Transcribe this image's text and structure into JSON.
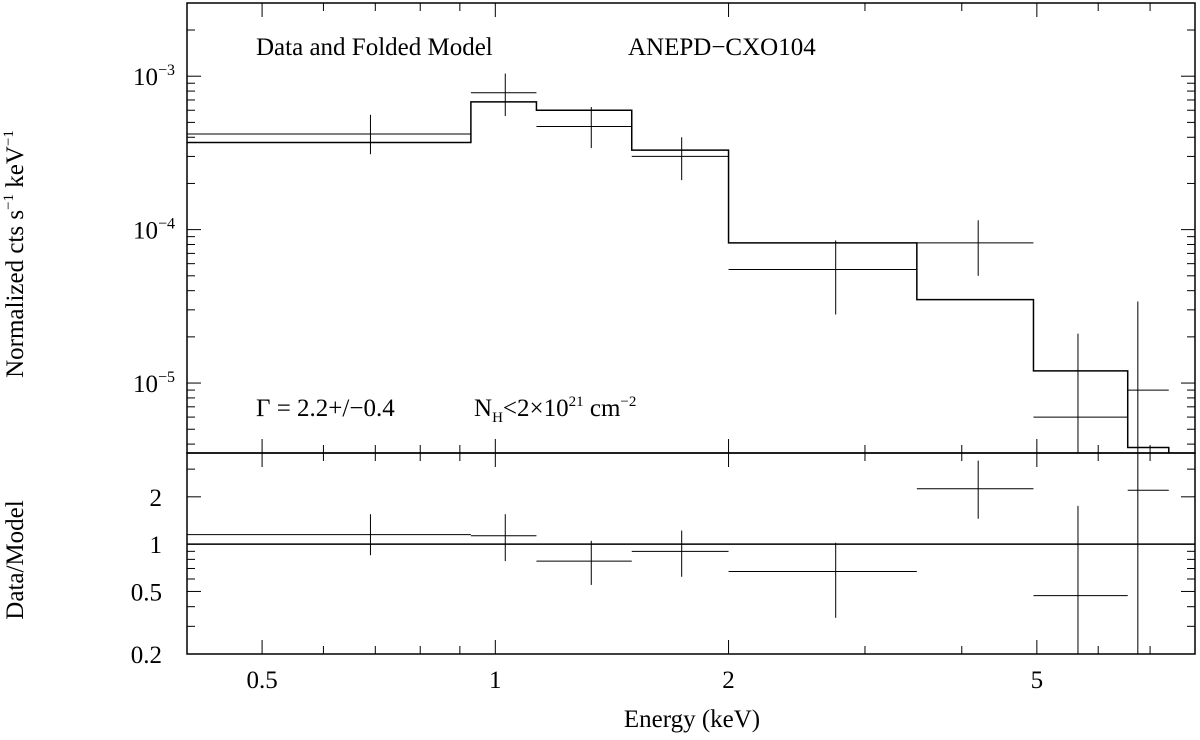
{
  "chart_data": [
    {
      "type": "scatter",
      "panel": "spectrum",
      "title": "Data and Folded Model",
      "source_label": "ANEPD−CXO104",
      "annotation": {
        "gamma_text": "Γ = 2.2+/−0.4",
        "nh_prefix": "N",
        "nh_sub": "H",
        "nh_mid": "<2×10",
        "nh_exp": "21",
        "nh_unit": " cm",
        "nh_unit_exp": "−2"
      },
      "ylabel": {
        "base": "Normalized cts s",
        "exp1": "−1",
        "mid": " keV",
        "exp2": "−1"
      },
      "xscale": "log",
      "yscale": "log",
      "xlim": [
        0.4,
        8.0
      ],
      "ylim": [
        3.5e-06,
        0.003
      ],
      "yticks": [
        {
          "value": 0.001,
          "base": "10",
          "exp": "−3"
        },
        {
          "value": 0.0001,
          "base": "10",
          "exp": "−4"
        },
        {
          "value": 1e-05,
          "base": "10",
          "exp": "−5"
        }
      ],
      "model_steps": [
        {
          "x0": 0.4,
          "x1": 0.93,
          "y": 0.00037
        },
        {
          "x0": 0.93,
          "x1": 1.13,
          "y": 0.00068
        },
        {
          "x0": 1.13,
          "x1": 1.5,
          "y": 0.0006
        },
        {
          "x0": 1.5,
          "x1": 2.0,
          "y": 0.00033
        },
        {
          "x0": 2.0,
          "x1": 3.5,
          "y": 8.2e-05
        },
        {
          "x0": 3.5,
          "x1": 4.95,
          "y": 3.5e-05
        },
        {
          "x0": 4.95,
          "x1": 6.55,
          "y": 1.2e-05
        },
        {
          "x0": 6.55,
          "x1": 7.4,
          "y": 3.8e-06
        }
      ],
      "data_points": [
        {
          "x": 0.69,
          "xlo": 0.4,
          "xhi": 0.93,
          "y": 0.00042,
          "ylo": 0.00031,
          "yhi": 0.00056
        },
        {
          "x": 1.03,
          "xlo": 0.93,
          "xhi": 1.13,
          "y": 0.00078,
          "ylo": 0.00055,
          "yhi": 0.00104
        },
        {
          "x": 1.33,
          "xlo": 1.13,
          "xhi": 1.5,
          "y": 0.00047,
          "ylo": 0.00034,
          "yhi": 0.00063
        },
        {
          "x": 1.74,
          "xlo": 1.5,
          "xhi": 2.0,
          "y": 0.0003,
          "ylo": 0.00021,
          "yhi": 0.0004
        },
        {
          "x": 2.75,
          "xlo": 2.0,
          "xhi": 3.5,
          "y": 5.5e-05,
          "ylo": 2.8e-05,
          "yhi": 8.5e-05
        },
        {
          "x": 4.2,
          "xlo": 3.5,
          "xhi": 4.95,
          "y": 8.2e-05,
          "ylo": 5e-05,
          "yhi": 0.000115
        },
        {
          "x": 5.65,
          "xlo": 4.95,
          "xhi": 6.55,
          "y": 6e-06,
          "ylo": 3.5e-06,
          "yhi": 2.1e-05
        },
        {
          "x": 6.75,
          "xlo": 6.55,
          "xhi": 7.4,
          "y": 9e-06,
          "ylo": 3.5e-06,
          "yhi": 3.4e-05
        }
      ]
    },
    {
      "type": "scatter",
      "panel": "ratio",
      "xlabel": "Energy (keV)",
      "ylabel": "Data/Model",
      "xscale": "log",
      "yscale": "log",
      "xlim": [
        0.4,
        8.0
      ],
      "ylim": [
        0.2,
        3.8
      ],
      "reference_line": 1,
      "xticks": [
        {
          "value": 0.5,
          "label": "0.5"
        },
        {
          "value": 1,
          "label": "1"
        },
        {
          "value": 2,
          "label": "2"
        },
        {
          "value": 5,
          "label": "5"
        }
      ],
      "yticks": [
        {
          "value": 0.2,
          "label": "0.2"
        },
        {
          "value": 0.5,
          "label": "0.5"
        },
        {
          "value": 1,
          "label": "1"
        },
        {
          "value": 2,
          "label": "2"
        }
      ],
      "data_points": [
        {
          "x": 0.69,
          "xlo": 0.4,
          "xhi": 0.93,
          "y": 1.15,
          "ylo": 0.85,
          "yhi": 1.55
        },
        {
          "x": 1.03,
          "xlo": 0.93,
          "xhi": 1.13,
          "y": 1.13,
          "ylo": 0.78,
          "yhi": 1.55
        },
        {
          "x": 1.33,
          "xlo": 1.13,
          "xhi": 1.5,
          "y": 0.78,
          "ylo": 0.55,
          "yhi": 1.05
        },
        {
          "x": 1.74,
          "xlo": 1.5,
          "xhi": 2.0,
          "y": 0.9,
          "ylo": 0.62,
          "yhi": 1.22
        },
        {
          "x": 2.75,
          "xlo": 2.0,
          "xhi": 3.5,
          "y": 0.67,
          "ylo": 0.34,
          "yhi": 1.02
        },
        {
          "x": 4.2,
          "xlo": 3.5,
          "xhi": 4.95,
          "y": 2.25,
          "ylo": 1.45,
          "yhi": 3.4
        },
        {
          "x": 5.65,
          "xlo": 4.95,
          "xhi": 6.55,
          "y": 0.47,
          "ylo": 0.2,
          "yhi": 1.75
        },
        {
          "x": 6.75,
          "xlo": 6.55,
          "xhi": 7.4,
          "y": 2.2,
          "ylo": 0.2,
          "yhi": 3.8
        }
      ]
    }
  ]
}
